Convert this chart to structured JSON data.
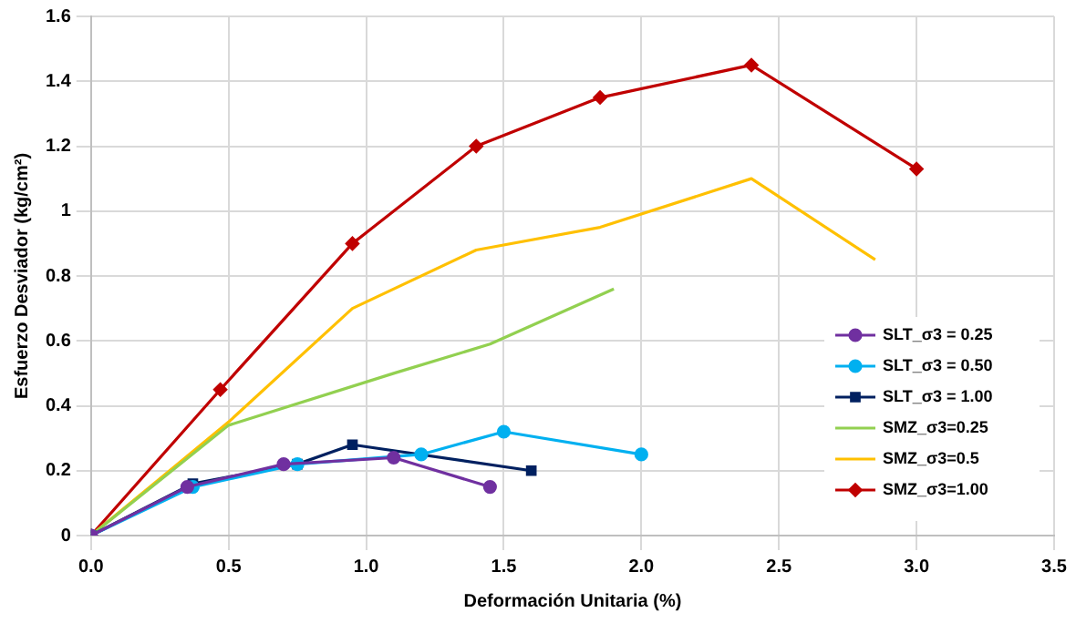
{
  "chart_data": {
    "type": "line",
    "xlabel": "Deformación Unitaria (%)",
    "ylabel": "Esfuerzo Desviador (kg/cm²)",
    "xlim": [
      0,
      3.5
    ],
    "xticks": [
      {
        "value": 0,
        "label": "0.0"
      },
      {
        "value": 0.5,
        "label": "0.5"
      },
      {
        "value": 1,
        "label": "1.0"
      },
      {
        "value": 1.5,
        "label": "1.5"
      },
      {
        "value": 2,
        "label": "2.0"
      },
      {
        "value": 2.5,
        "label": "2.5"
      },
      {
        "value": 3,
        "label": "3.0"
      },
      {
        "value": 3.5,
        "label": "3.5"
      }
    ],
    "ylim": [
      0,
      1.6
    ],
    "yticks": [
      0,
      0.2,
      0.4,
      0.6,
      0.8,
      1,
      1.2,
      1.4,
      1.6
    ],
    "grid": true,
    "legend": "bottom right",
    "series": [
      {
        "name": "SLT_σ3 = 0.25",
        "color": "#7030a0",
        "marker": "circle",
        "x": [
          0,
          0.35,
          0.7,
          1.1,
          1.45
        ],
        "values": [
          0,
          0.15,
          0.22,
          0.24,
          0.15
        ]
      },
      {
        "name": "SLT_σ3 = 0.50",
        "color": "#00b0f0",
        "marker": "circle",
        "x": [
          0,
          0.37,
          0.75,
          1.2,
          1.5,
          2.0
        ],
        "values": [
          0,
          0.15,
          0.22,
          0.25,
          0.32,
          0.25
        ]
      },
      {
        "name": "SLT_σ3 = 1.00",
        "color": "#002060",
        "marker": "square",
        "x": [
          0,
          0.37,
          0.75,
          0.95,
          1.6
        ],
        "values": [
          0,
          0.16,
          0.22,
          0.28,
          0.2
        ]
      },
      {
        "name": "SMZ_σ3=0.25",
        "color": "#92d050",
        "marker": "none",
        "x": [
          0,
          0.5,
          1.1,
          1.45,
          1.9
        ],
        "values": [
          0,
          0.34,
          0.5,
          0.59,
          0.76
        ]
      },
      {
        "name": "SMZ_σ3=0.5",
        "color": "#ffc000",
        "marker": "none",
        "x": [
          0,
          0.5,
          0.95,
          1.4,
          1.85,
          2.4,
          2.85
        ],
        "values": [
          0,
          0.35,
          0.7,
          0.88,
          0.95,
          1.1,
          0.85
        ]
      },
      {
        "name": "SMZ_σ3=1.00",
        "color": "#c00000",
        "marker": "diamond",
        "x": [
          0,
          0.47,
          0.95,
          1.4,
          1.85,
          2.4,
          3.0
        ],
        "values": [
          0,
          0.45,
          0.9,
          1.2,
          1.35,
          1.45,
          1.13
        ]
      }
    ]
  }
}
